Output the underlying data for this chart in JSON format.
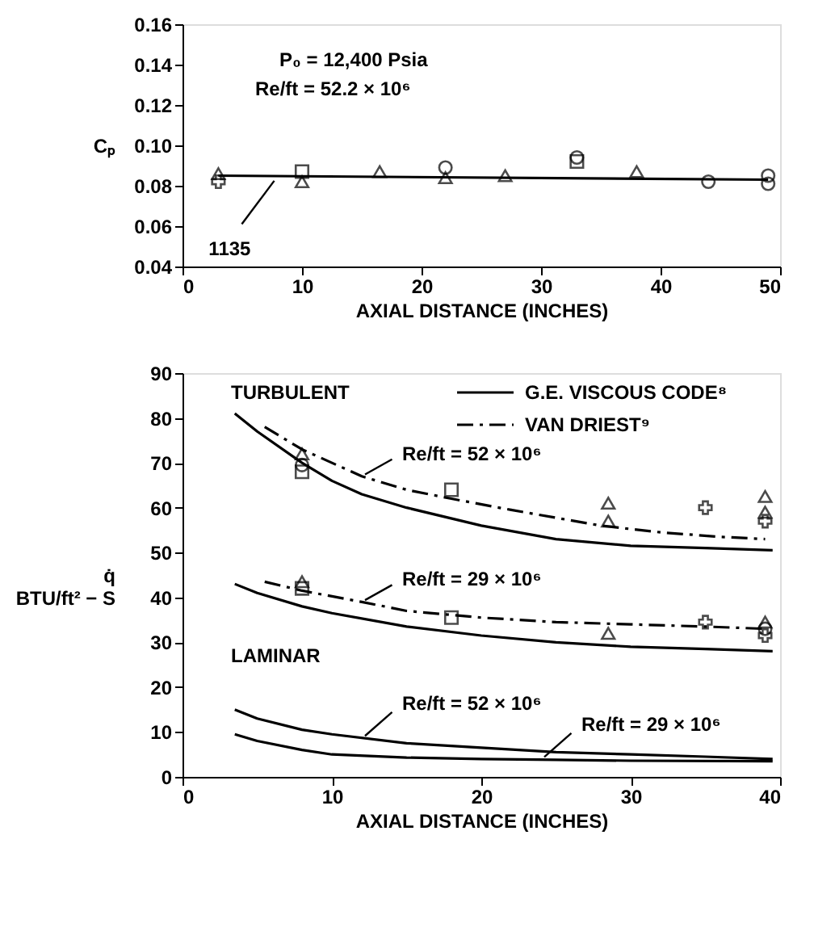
{
  "chart_data": [
    {
      "type": "scatter",
      "ylabel": "Cₚ",
      "xlabel": "AXIAL DISTANCE (INCHES)",
      "xlim": [
        0,
        50
      ],
      "xticks": [
        0,
        10,
        20,
        30,
        40,
        50
      ],
      "ylim": [
        0.04,
        0.16
      ],
      "yticks": [
        0.04,
        0.06,
        0.08,
        {
          "value": 0.1,
          "label": "0.10"
        },
        0.12,
        0.14,
        0.16
      ],
      "grid": false,
      "legend": false,
      "annotations": [
        "P₀ = 12,400 Psia",
        "Re/ft = 52.2 × 10⁶",
        {
          "text": "1135",
          "x": 8,
          "y": 0.085
        }
      ],
      "series": [
        {
          "type": "line",
          "color": "#000000",
          "line_style": "solid",
          "marker": "none",
          "x": [
            3,
            49
          ],
          "values": [
            0.085,
            0.083
          ]
        },
        {
          "color": "#000000",
          "marker": "triangle",
          "x": [
            3,
            10,
            16.5,
            22,
            27,
            38
          ],
          "values": [
            0.086,
            0.082,
            0.087,
            0.084,
            0.085,
            0.087
          ]
        },
        {
          "color": "#000000",
          "marker": "square",
          "x": [
            10,
            33
          ],
          "values": [
            0.087,
            0.092
          ]
        },
        {
          "color": "#000000",
          "marker": "circle",
          "x": [
            22,
            33,
            44,
            49,
            49
          ],
          "values": [
            0.089,
            0.094,
            0.082,
            0.085,
            0.081
          ]
        },
        {
          "color": "#000000",
          "marker": "cross",
          "x": [
            3
          ],
          "values": [
            0.082
          ]
        }
      ]
    },
    {
      "type": "line",
      "ylabel": "q̇ BTU/ft² − S",
      "xlabel": "AXIAL DISTANCE (INCHES)",
      "xlim": [
        0,
        40
      ],
      "xticks": [
        0,
        10,
        20,
        30,
        40
      ],
      "ylim": [
        0,
        90
      ],
      "yticks": [
        0,
        10,
        20,
        30,
        40,
        50,
        60,
        70,
        80,
        90
      ],
      "grid": false,
      "legend": "top right",
      "annotations": [
        "TURBULENT",
        "LAMINAR",
        {
          "text": "Re/ft = 52 × 10⁶",
          "x": 12,
          "y": 67
        },
        {
          "text": "Re/ft = 29 × 10⁶",
          "x": 12,
          "y": 39
        },
        {
          "text": "Re/ft = 52 × 10⁶",
          "x": 12,
          "y": 8.5
        },
        {
          "text": "Re/ft = 29 × 10⁶",
          "x": 24,
          "y": 3.8
        }
      ],
      "series": [
        {
          "name": "G.E. VISCOUS CODE⁸",
          "color": "#000000",
          "line_style": "solid",
          "x": [
            3.5,
            5,
            8,
            10,
            12,
            15,
            20,
            25,
            30,
            35,
            39.5
          ],
          "values": [
            81,
            77,
            70,
            66,
            63,
            60,
            56,
            53,
            51.5,
            51,
            50.5
          ]
        },
        {
          "name": "VAN DRIEST⁹",
          "color": "#000000",
          "line_style": "dashed",
          "x": [
            5.5,
            8,
            12,
            15,
            18,
            22,
            28,
            32,
            36,
            39
          ],
          "values": [
            78,
            73,
            67,
            64,
            62,
            59.5,
            56,
            54.5,
            53.5,
            53
          ]
        },
        {
          "color": "#000000",
          "line_style": "solid",
          "x": [
            3.5,
            5,
            8,
            10,
            15,
            20,
            25,
            30,
            35,
            39.5
          ],
          "values": [
            43,
            41,
            38,
            36.5,
            33.5,
            31.5,
            30,
            29,
            28.5,
            28
          ]
        },
        {
          "color": "#000000",
          "line_style": "dashed",
          "x": [
            5.5,
            8,
            12,
            15,
            20,
            25,
            30,
            35,
            39
          ],
          "values": [
            43.5,
            41.5,
            39,
            37,
            35.5,
            34.5,
            34,
            33.5,
            33
          ]
        },
        {
          "color": "#000000",
          "line_style": "solid",
          "x": [
            3.5,
            5,
            8,
            10,
            15,
            20,
            25,
            30,
            35,
            39.5
          ],
          "values": [
            15,
            13,
            10.5,
            9.5,
            7.5,
            6.5,
            5.5,
            5,
            4.5,
            4
          ]
        },
        {
          "color": "#000000",
          "line_style": "solid",
          "x": [
            3.5,
            5,
            8,
            10,
            15,
            20,
            25,
            30,
            39.5
          ],
          "values": [
            9.5,
            8,
            6,
            5,
            4.3,
            4,
            3.8,
            3.6,
            3.5
          ]
        },
        {
          "type": "scatter",
          "color": "#000000",
          "marker": "triangle",
          "x": [
            8,
            28.5,
            28.5,
            39,
            39,
            8,
            28.5,
            39
          ],
          "values": [
            72,
            61,
            57,
            62.5,
            59,
            43.5,
            32,
            34.5
          ]
        },
        {
          "type": "scatter",
          "color": "#000000",
          "marker": "square",
          "x": [
            8,
            18,
            8,
            18
          ],
          "values": [
            68,
            64,
            42,
            35.5
          ]
        },
        {
          "type": "scatter",
          "color": "#000000",
          "marker": "circle",
          "x": [
            8,
            39
          ],
          "values": [
            69.5,
            33
          ]
        },
        {
          "type": "scatter",
          "color": "#000000",
          "marker": "cross",
          "x": [
            35,
            39,
            35,
            39
          ],
          "values": [
            60,
            57,
            34.5,
            31.5
          ]
        }
      ]
    }
  ]
}
